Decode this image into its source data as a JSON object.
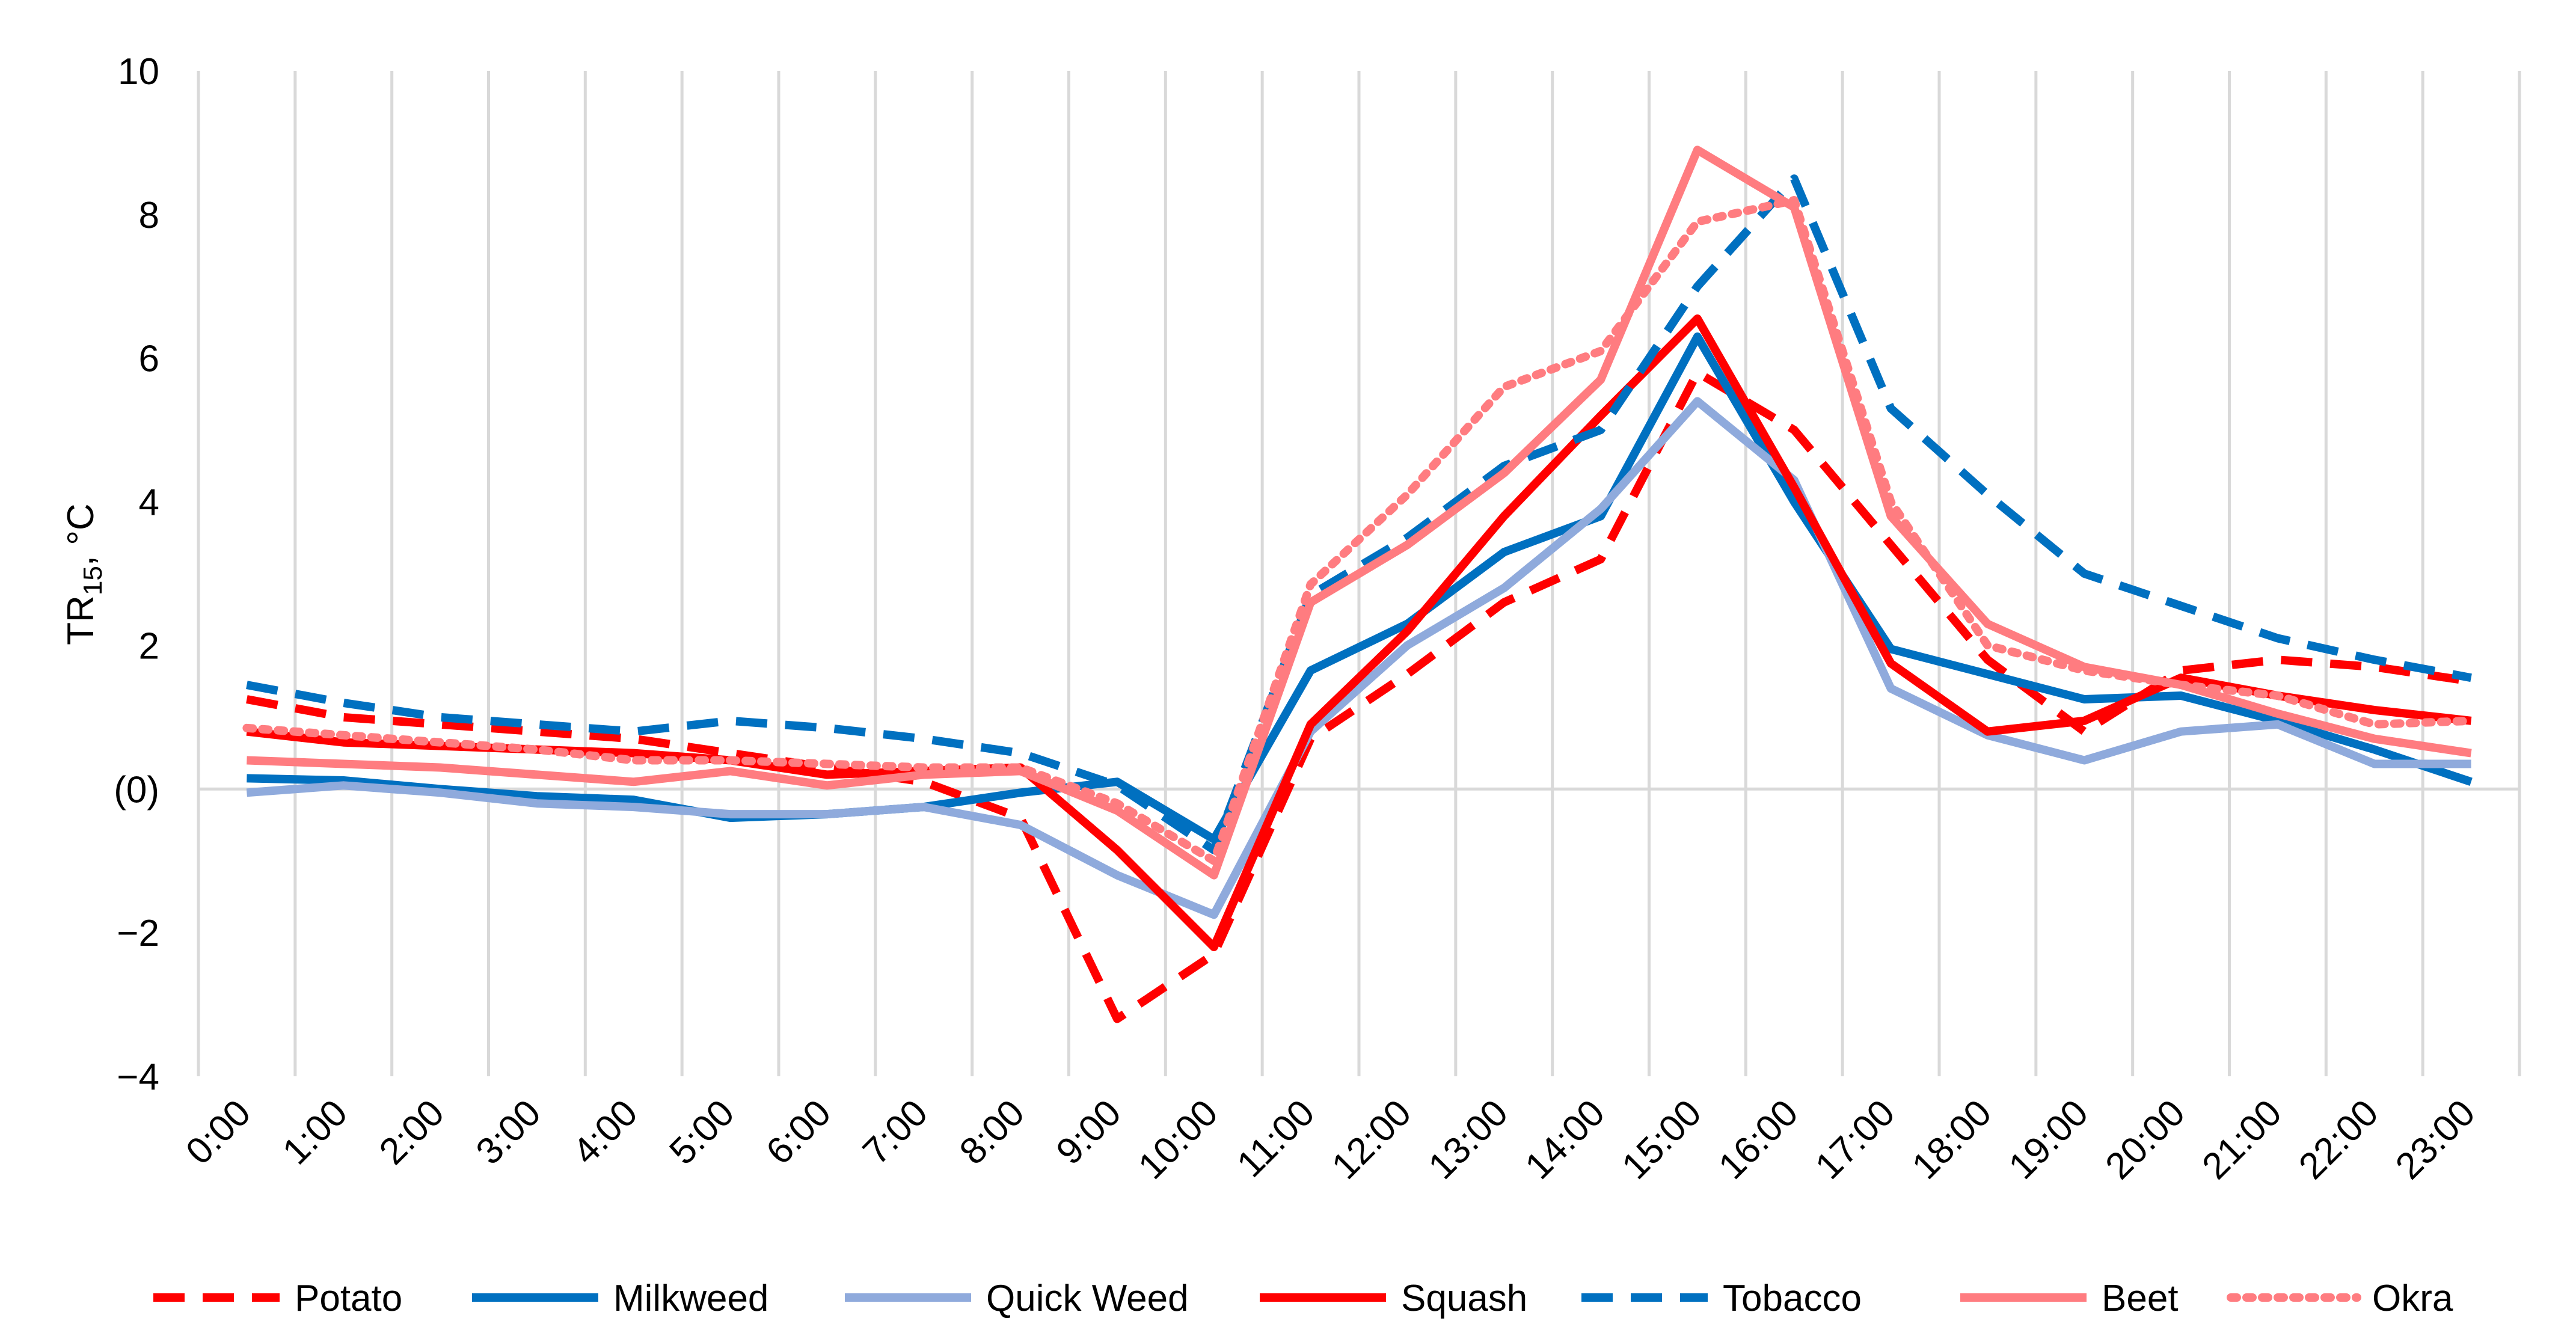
{
  "chart_data": {
    "type": "line",
    "title": "",
    "xlabel": "",
    "ylabel_main": "TR",
    "ylabel_sub": "15",
    "ylabel_unit": ", °C",
    "ylim": [
      -4,
      10
    ],
    "yticks": [
      {
        "value": 10,
        "label": "10"
      },
      {
        "value": 8,
        "label": "8"
      },
      {
        "value": 6,
        "label": "6"
      },
      {
        "value": 4,
        "label": "4"
      },
      {
        "value": 2,
        "label": "2"
      },
      {
        "value": 0,
        "label": "(0)"
      },
      {
        "value": -2,
        "label": "−2"
      },
      {
        "value": -4,
        "label": "−4"
      }
    ],
    "categories": [
      "0:00",
      "1:00",
      "2:00",
      "3:00",
      "4:00",
      "5:00",
      "6:00",
      "7:00",
      "8:00",
      "9:00",
      "10:00",
      "11:00",
      "12:00",
      "13:00",
      "14:00",
      "15:00",
      "16:00",
      "17:00",
      "18:00",
      "19:00",
      "20:00",
      "21:00",
      "22:00",
      "23:00"
    ],
    "x": [
      0.5,
      1.5,
      2.5,
      3.5,
      4.5,
      5.5,
      6.5,
      7.5,
      8.5,
      9.5,
      10.5,
      11.5,
      12.5,
      13.5,
      14.5,
      15.5,
      16.5,
      17.5,
      18.5,
      19.5,
      20.5,
      21.5,
      22.5,
      23.5
    ],
    "gridlines": "vertical",
    "legend_position": "bottom",
    "series": [
      {
        "name": "Potato",
        "color": "#ff0000",
        "dash": "dash",
        "values": [
          1.25,
          1.0,
          0.9,
          0.8,
          0.7,
          0.5,
          0.3,
          0.1,
          -0.4,
          -3.2,
          -2.3,
          0.7,
          1.6,
          2.6,
          3.2,
          5.8,
          5.0,
          3.4,
          1.8,
          0.8,
          1.65,
          1.8,
          1.7,
          1.5
        ]
      },
      {
        "name": "Milkweed",
        "color": "#0070c0",
        "dash": "solid",
        "values": [
          0.15,
          0.12,
          0.0,
          -0.1,
          -0.15,
          -0.4,
          -0.35,
          -0.25,
          -0.05,
          0.1,
          -0.7,
          1.65,
          2.3,
          3.3,
          3.8,
          6.3,
          4.0,
          1.95,
          1.6,
          1.25,
          1.3,
          0.95,
          0.55,
          0.1
        ]
      },
      {
        "name": "Quick Weed",
        "color": "#8faadc",
        "dash": "solid",
        "values": [
          -0.05,
          0.05,
          -0.05,
          -0.2,
          -0.25,
          -0.35,
          -0.35,
          -0.25,
          -0.5,
          -1.2,
          -1.75,
          0.8,
          2.0,
          2.8,
          3.9,
          5.4,
          4.3,
          1.4,
          0.75,
          0.4,
          0.8,
          0.9,
          0.35,
          0.35
        ]
      },
      {
        "name": "Squash",
        "color": "#ff0000",
        "dash": "solid",
        "values": [
          0.8,
          0.65,
          0.6,
          0.55,
          0.5,
          0.4,
          0.2,
          0.25,
          0.3,
          -0.85,
          -2.2,
          0.9,
          2.2,
          3.8,
          5.2,
          6.55,
          4.2,
          1.75,
          0.8,
          0.95,
          1.55,
          1.3,
          1.1,
          0.95
        ]
      },
      {
        "name": "Tobacco",
        "color": "#0070c0",
        "dash": "dash",
        "values": [
          1.45,
          1.2,
          1.0,
          0.9,
          0.8,
          0.95,
          0.85,
          0.7,
          0.5,
          0.05,
          -0.85,
          2.7,
          3.5,
          4.5,
          5.0,
          7.0,
          8.5,
          5.3,
          4.1,
          3.0,
          2.55,
          2.1,
          1.8,
          1.55
        ]
      },
      {
        "name": "Beet",
        "color": "#ff7c80",
        "dash": "solid",
        "values": [
          0.4,
          0.35,
          0.3,
          0.2,
          0.1,
          0.25,
          0.05,
          0.2,
          0.25,
          -0.3,
          -1.2,
          2.6,
          3.4,
          4.4,
          5.7,
          8.9,
          8.1,
          3.8,
          2.3,
          1.7,
          1.45,
          1.05,
          0.7,
          0.5
        ]
      },
      {
        "name": "Okra",
        "color": "#ff7c80",
        "dash": "dot",
        "values": [
          0.85,
          0.75,
          0.65,
          0.55,
          0.4,
          0.4,
          0.35,
          0.3,
          0.3,
          -0.2,
          -1.0,
          2.85,
          4.1,
          5.6,
          6.1,
          7.9,
          8.2,
          4.0,
          2.0,
          1.65,
          1.45,
          1.3,
          0.9,
          0.95
        ]
      }
    ]
  }
}
